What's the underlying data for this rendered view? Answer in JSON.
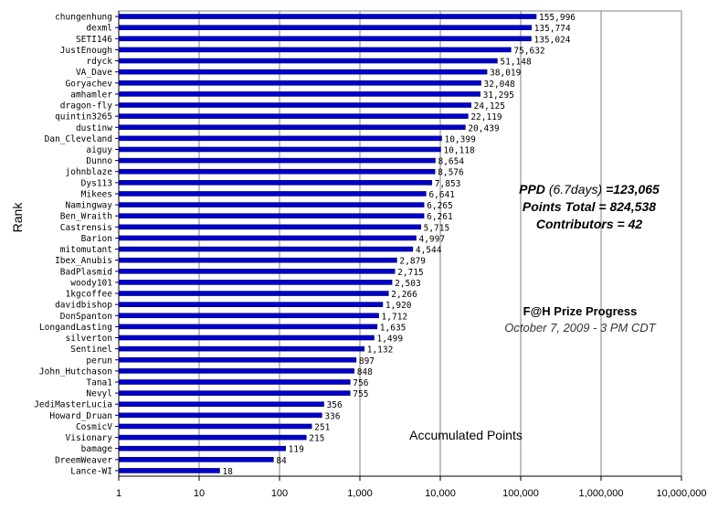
{
  "chart_data": {
    "type": "bar",
    "orientation": "horizontal",
    "xscale": "log",
    "xlim": [
      1,
      10000000
    ],
    "xticks": [
      "1",
      "10",
      "100",
      "1,000",
      "10,000",
      "100,000",
      "1,000,000",
      "10,000,000"
    ],
    "ylabel": "Rank",
    "xlabel": "Accumulated Points",
    "bar_color": "#0000cc",
    "grid": "vertical",
    "categories": [
      "chungenhung",
      "dexml",
      "SETI146",
      "JustEnough",
      "rdyck",
      "VA_Dave",
      "Goryachev",
      "amhamler",
      "dragon-fly",
      "quintin3265",
      "dustinw",
      "Dan_Cleveland",
      "aiguy",
      "Dunno",
      "johnblaze",
      "Dys113",
      "Mikees",
      "Namingway",
      "Ben_Wraith",
      "Castrensis",
      "Barion",
      "mitomutant",
      "Ibex_Anubis",
      "BadPlasmid",
      "woody101",
      "1kgcoffee",
      "davidbishop",
      "DonSpanton",
      "LongandLasting",
      "silverton",
      "Sentinel",
      "perun",
      "John_Hutchason",
      "Tana1",
      "Nevyl",
      "JediMasterLucia",
      "Howard_Druan",
      "CosmicV",
      "Visionary",
      "bamage",
      "DreemWeaver",
      "Lance-WI"
    ],
    "values": [
      155996,
      135774,
      135024,
      75632,
      51148,
      38019,
      32048,
      31295,
      24125,
      22119,
      20439,
      10399,
      10118,
      8654,
      8576,
      7853,
      6641,
      6265,
      6261,
      5715,
      4997,
      4544,
      2879,
      2715,
      2503,
      2266,
      1920,
      1712,
      1635,
      1499,
      1132,
      897,
      848,
      756,
      755,
      356,
      336,
      251,
      215,
      119,
      84,
      18
    ],
    "value_labels": [
      "155,996",
      "135,774",
      "135,024",
      "75,632",
      "51,148",
      "38,019",
      "32,048",
      "31,295",
      "24,125",
      "22,119",
      "20,439",
      "10,399",
      "10,118",
      "8,654",
      "8,576",
      "7,853",
      "6,641",
      "6,265",
      "6,261",
      "5,715",
      "4,997",
      "4,544",
      "2,879",
      "2,715",
      "2,503",
      "2,266",
      "1,920",
      "1,712",
      "1,635",
      "1,499",
      "1,132",
      "897",
      "848",
      "756",
      "755",
      "356",
      "336",
      "251",
      "215",
      "119",
      "84",
      "18"
    ]
  },
  "annotations": {
    "ppd_label": "PPD",
    "ppd_days": "(6.7days)",
    "ppd_value": "=123,065",
    "points_total": "Points Total = 824,538",
    "contributors": "Contributors = 42",
    "prize_title": "F@H Prize Progress",
    "prize_date": "October 7, 2009 - 3 PM CDT"
  }
}
